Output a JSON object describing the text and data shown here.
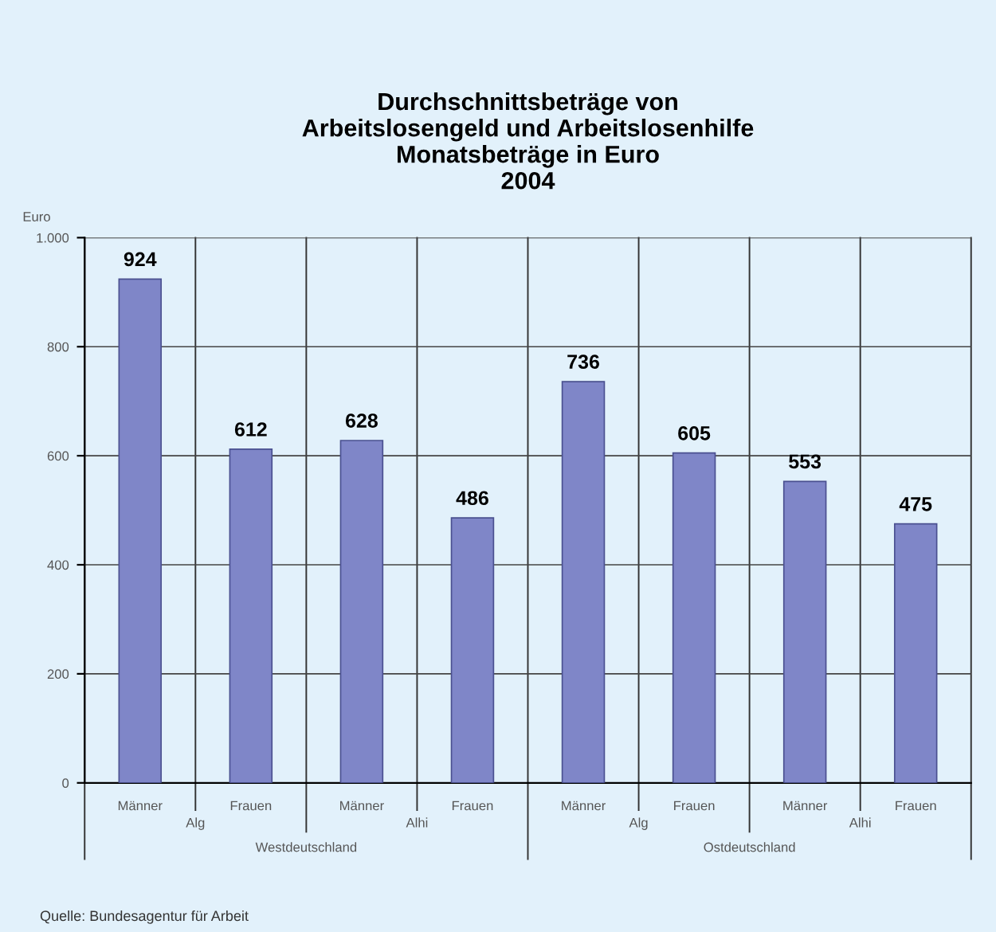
{
  "chart_data": {
    "type": "bar",
    "title": "Durchschnittsbeträge von\nArbeitslosengeld und Arbeitslosenhilfe\nMonatsbeträge in Euro\n2004",
    "ylabel": "Euro",
    "categories": [
      "Männer",
      "Frauen",
      "Männer",
      "Frauen",
      "Männer",
      "Frauen",
      "Männer",
      "Frauen"
    ],
    "values": [
      924,
      612,
      628,
      486,
      736,
      605,
      553,
      475
    ],
    "color": "#7f86c8",
    "data_labels": true,
    "ylim": [
      0,
      1000
    ],
    "yticks": [
      0,
      200,
      400,
      600,
      800,
      {
        "value": 1000,
        "label": "1.000"
      }
    ],
    "grid": "y",
    "annotations": [
      "Alg",
      "Alhi",
      "Alg",
      "Alhi",
      "Westdeutschland",
      "Ostdeutschland",
      "Quelle: Bundesagentur für Arbeit"
    ]
  }
}
